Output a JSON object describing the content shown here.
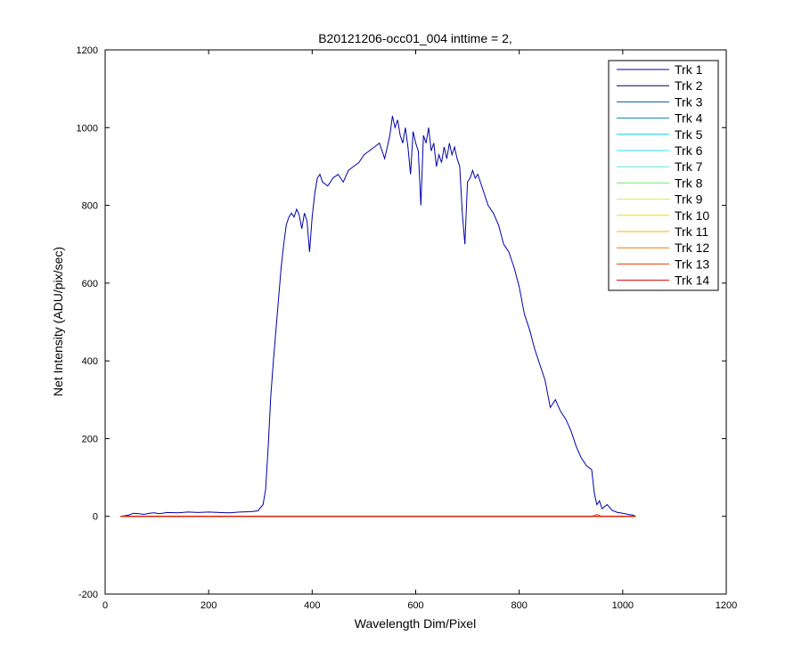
{
  "chart_data": {
    "type": "line",
    "title": "B20121206-occ01_004 inttime = 2,",
    "xlabel": "Wavelength Dim/Pixel",
    "ylabel": "Net Intensity (ADU/pix/sec)",
    "xlim": [
      0,
      1200
    ],
    "ylim": [
      -200,
      1200
    ],
    "xticks": [
      0,
      200,
      400,
      600,
      800,
      1000,
      1200
    ],
    "yticks": [
      -200,
      0,
      200,
      400,
      600,
      800,
      1000,
      1200
    ],
    "grid": false,
    "legend_position": "top-right",
    "series": [
      {
        "name": "Trk 1",
        "color": "#0000a8",
        "x": [
          30,
          45,
          55,
          65,
          75,
          85,
          95,
          105,
          120,
          140,
          160,
          180,
          200,
          220,
          240,
          260,
          280,
          295,
          305,
          310,
          315,
          320,
          325,
          330,
          335,
          340,
          345,
          350,
          355,
          360,
          365,
          370,
          375,
          380,
          385,
          390,
          395,
          400,
          405,
          410,
          415,
          420,
          430,
          440,
          450,
          460,
          470,
          480,
          490,
          500,
          510,
          520,
          530,
          540,
          550,
          555,
          560,
          565,
          570,
          575,
          580,
          585,
          590,
          595,
          600,
          605,
          610,
          615,
          620,
          625,
          630,
          635,
          640,
          645,
          650,
          655,
          660,
          665,
          670,
          675,
          680,
          685,
          690,
          695,
          700,
          705,
          710,
          715,
          720,
          730,
          740,
          750,
          760,
          770,
          780,
          790,
          800,
          810,
          820,
          830,
          840,
          850,
          860,
          870,
          880,
          890,
          900,
          910,
          920,
          930,
          940,
          945,
          950,
          955,
          960,
          970,
          980,
          990,
          1000,
          1010,
          1020,
          1025
        ],
        "values": [
          0,
          3,
          8,
          7,
          5,
          8,
          9,
          7,
          10,
          9,
          11,
          10,
          11,
          10,
          9,
          11,
          12,
          14,
          30,
          70,
          180,
          310,
          400,
          480,
          560,
          640,
          700,
          750,
          770,
          780,
          770,
          790,
          775,
          740,
          780,
          760,
          680,
          770,
          830,
          870,
          880,
          860,
          850,
          870,
          880,
          860,
          890,
          900,
          910,
          930,
          940,
          950,
          960,
          920,
          980,
          1030,
          1000,
          1020,
          980,
          960,
          1000,
          950,
          880,
          990,
          960,
          940,
          800,
          980,
          960,
          1000,
          940,
          960,
          900,
          930,
          910,
          950,
          920,
          960,
          930,
          950,
          920,
          900,
          780,
          700,
          860,
          870,
          890,
          870,
          880,
          840,
          800,
          780,
          750,
          700,
          680,
          640,
          590,
          520,
          480,
          430,
          390,
          350,
          280,
          300,
          270,
          250,
          220,
          180,
          150,
          130,
          120,
          60,
          30,
          40,
          20,
          30,
          15,
          10,
          8,
          5,
          3,
          0
        ]
      },
      {
        "name": "Trk 2",
        "color": "#00005a",
        "x": [
          30,
          1025
        ],
        "values": [
          0,
          0
        ]
      },
      {
        "name": "Trk 3",
        "color": "#005aa0",
        "x": [
          30,
          1025
        ],
        "values": [
          0,
          0
        ]
      },
      {
        "name": "Trk 4",
        "color": "#008ca0",
        "x": [
          30,
          1025
        ],
        "values": [
          0,
          0
        ]
      },
      {
        "name": "Trk 5",
        "color": "#00d2e6",
        "x": [
          30,
          1025
        ],
        "values": [
          0,
          0
        ]
      },
      {
        "name": "Trk 6",
        "color": "#2ee6e6",
        "x": [
          30,
          1025
        ],
        "values": [
          0,
          0
        ]
      },
      {
        "name": "Trk 7",
        "color": "#5ae6e6",
        "x": [
          30,
          1025
        ],
        "values": [
          0,
          0
        ]
      },
      {
        "name": "Trk 8",
        "color": "#78e678",
        "x": [
          30,
          1025
        ],
        "values": [
          0,
          0
        ]
      },
      {
        "name": "Trk 9",
        "color": "#c8f05a",
        "x": [
          30,
          1025
        ],
        "values": [
          0,
          0
        ]
      },
      {
        "name": "Trk 10",
        "color": "#e6e600",
        "x": [
          30,
          1025
        ],
        "values": [
          0,
          0
        ]
      },
      {
        "name": "Trk 11",
        "color": "#f0b400",
        "x": [
          30,
          1025
        ],
        "values": [
          0,
          0
        ]
      },
      {
        "name": "Trk 12",
        "color": "#f07800",
        "x": [
          30,
          1025
        ],
        "values": [
          0,
          0
        ]
      },
      {
        "name": "Trk 13",
        "color": "#e63c00",
        "x": [
          30,
          940,
          945,
          950,
          955,
          960,
          1025
        ],
        "values": [
          0,
          0,
          2,
          5,
          2,
          0,
          0
        ]
      },
      {
        "name": "Trk 14",
        "color": "#dc0000",
        "x": [
          30,
          1025
        ],
        "values": [
          0,
          0
        ]
      }
    ]
  }
}
